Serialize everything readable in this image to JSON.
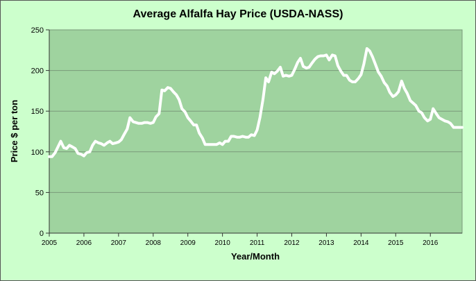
{
  "chart_data": {
    "type": "line",
    "title": "Average Alfalfa Hay Price (USDA-NASS)",
    "xlabel": "Year/Month",
    "ylabel": "Price $ per ton",
    "ylim": [
      0,
      250
    ],
    "yticks": [
      0,
      50,
      100,
      150,
      200,
      250
    ],
    "xlim": [
      2005,
      2016.917
    ],
    "xticks": [
      "2005",
      "2006",
      "2007",
      "2008",
      "2009",
      "2010",
      "2011",
      "2012",
      "2013",
      "2014",
      "2015",
      "2016"
    ],
    "grid": "horizontal",
    "colors": {
      "plot_area": "#9fd39f",
      "page": "#ccffcc",
      "line": "#ffffff",
      "grid": "#7a9a7a"
    },
    "series": [
      {
        "x": [
          2005.0,
          2005.08,
          2005.17,
          2005.25,
          2005.33,
          2005.42,
          2005.5,
          2005.58,
          2005.67,
          2005.75,
          2005.83,
          2005.92,
          2006.0,
          2006.08,
          2006.17,
          2006.25,
          2006.33,
          2006.42,
          2006.5,
          2006.58,
          2006.67,
          2006.75,
          2006.83,
          2006.92,
          2007.0,
          2007.08,
          2007.17,
          2007.25,
          2007.33,
          2007.42,
          2007.5,
          2007.58,
          2007.67,
          2007.75,
          2007.83,
          2007.92,
          2008.0,
          2008.08,
          2008.17,
          2008.25,
          2008.33,
          2008.42,
          2008.5,
          2008.58,
          2008.67,
          2008.75,
          2008.83,
          2008.92,
          2009.0,
          2009.08,
          2009.17,
          2009.25,
          2009.33,
          2009.42,
          2009.5,
          2009.58,
          2009.67,
          2009.75,
          2009.83,
          2009.92,
          2010.0,
          2010.08,
          2010.17,
          2010.25,
          2010.33,
          2010.42,
          2010.5,
          2010.58,
          2010.67,
          2010.75,
          2010.83,
          2010.92,
          2011.0,
          2011.08,
          2011.17,
          2011.25,
          2011.33,
          2011.42,
          2011.5,
          2011.58,
          2011.67,
          2011.75,
          2011.83,
          2011.92,
          2012.0,
          2012.08,
          2012.17,
          2012.25,
          2012.33,
          2012.42,
          2012.5,
          2012.58,
          2012.67,
          2012.75,
          2012.83,
          2012.92,
          2013.0,
          2013.08,
          2013.17,
          2013.25,
          2013.33,
          2013.42,
          2013.5,
          2013.58,
          2013.67,
          2013.75,
          2013.83,
          2013.92,
          2014.0,
          2014.08,
          2014.17,
          2014.25,
          2014.33,
          2014.42,
          2014.5,
          2014.58,
          2014.67,
          2014.75,
          2014.83,
          2014.92,
          2015.0,
          2015.08,
          2015.17,
          2015.25,
          2015.33,
          2015.42,
          2015.5,
          2015.58,
          2015.67,
          2015.75,
          2015.83,
          2015.92,
          2016.0,
          2016.08,
          2016.17,
          2016.25,
          2016.33,
          2016.42,
          2016.5,
          2016.58,
          2016.67,
          2016.75,
          2016.83,
          2016.92
        ],
        "values": [
          94,
          94,
          99,
          106,
          113,
          105,
          104,
          108,
          106,
          104,
          98,
          97,
          95,
          99,
          100,
          108,
          113,
          111,
          110,
          108,
          111,
          113,
          110,
          111,
          112,
          115,
          122,
          128,
          142,
          137,
          136,
          135,
          135,
          136,
          136,
          135,
          136,
          143,
          147,
          176,
          175,
          179,
          178,
          174,
          170,
          164,
          153,
          149,
          142,
          138,
          133,
          133,
          123,
          117,
          109,
          109,
          109,
          109,
          109,
          111,
          109,
          113,
          113,
          119,
          119,
          118,
          118,
          119,
          118,
          118,
          121,
          120,
          127,
          142,
          165,
          191,
          186,
          198,
          196,
          199,
          204,
          193,
          194,
          193,
          194,
          201,
          210,
          215,
          205,
          203,
          204,
          209,
          214,
          217,
          218,
          218,
          219,
          213,
          219,
          218,
          206,
          199,
          194,
          194,
          188,
          186,
          186,
          190,
          195,
          208,
          227,
          224,
          217,
          207,
          198,
          193,
          185,
          181,
          173,
          168,
          170,
          174,
          187,
          178,
          172,
          163,
          160,
          157,
          150,
          148,
          142,
          138,
          140,
          153,
          147,
          142,
          140,
          138,
          137,
          135,
          130,
          130,
          130,
          130
        ]
      }
    ]
  }
}
